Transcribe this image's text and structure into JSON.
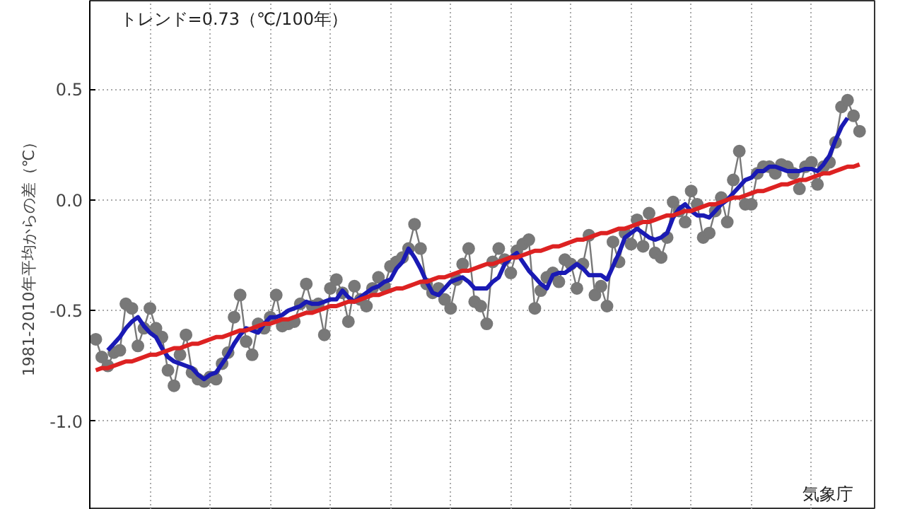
{
  "chart_data": {
    "type": "line",
    "ylabel": "1981-2010年平均からの差（℃）",
    "annotations": [
      "トレンド=0.73（℃/100年）",
      "気象庁"
    ],
    "categories": [
      null,
      null,
      null,
      null,
      null,
      null,
      null,
      null,
      null,
      null,
      null,
      null,
      null,
      null,
      null,
      null,
      null,
      null,
      null,
      null,
      null,
      null,
      null,
      null,
      null,
      null,
      null,
      null,
      null,
      null,
      null,
      null,
      null,
      null,
      null,
      null,
      null,
      null,
      null,
      null,
      null,
      null,
      null,
      null,
      null,
      null,
      null,
      null,
      null,
      null,
      null,
      null,
      null,
      null,
      null,
      null,
      null,
      null,
      null,
      null,
      null,
      null,
      null,
      null,
      null,
      null,
      null,
      null,
      null,
      null,
      null,
      null,
      null,
      null,
      null,
      null,
      null,
      null,
      null,
      null,
      null,
      null,
      null,
      null,
      null,
      null,
      null,
      null,
      null,
      null,
      null,
      null,
      null,
      null,
      null,
      null,
      null,
      null,
      null,
      null,
      null,
      null,
      null,
      null,
      null,
      null,
      null,
      null,
      null,
      null,
      null,
      null,
      null,
      null,
      null,
      null,
      null,
      null,
      null,
      null,
      null,
      null,
      null,
      null,
      null,
      null,
      null,
      null
    ],
    "ylim": [
      -1.4,
      0.9
    ],
    "yticks": [
      {
        "value": -1.0,
        "label": "-1.0"
      },
      {
        "value": -0.5,
        "label": "-0.5"
      },
      {
        "value": 0.0,
        "label": "0.0"
      },
      {
        "value": 0.5,
        "label": "0.5"
      }
    ],
    "grid": true,
    "series": [
      {
        "color": "#787878",
        "marker": "circle",
        "values": [
          -0.63,
          -0.71,
          -0.75,
          -0.69,
          -0.68,
          -0.47,
          -0.49,
          -0.66,
          -0.58,
          -0.49,
          -0.58,
          -0.62,
          -0.77,
          -0.84,
          -0.7,
          -0.61,
          -0.78,
          -0.81,
          -0.82,
          -0.8,
          -0.81,
          -0.74,
          -0.69,
          -0.53,
          -0.43,
          -0.64,
          -0.7,
          -0.56,
          -0.58,
          -0.53,
          -0.43,
          -0.57,
          -0.56,
          -0.55,
          -0.47,
          -0.38,
          -0.48,
          -0.47,
          -0.61,
          -0.4,
          -0.36,
          -0.42,
          -0.55,
          -0.39,
          -0.45,
          -0.48,
          -0.4,
          -0.35,
          -0.39,
          -0.3,
          -0.28,
          -0.26,
          -0.22,
          -0.11,
          -0.22,
          -0.38,
          -0.42,
          -0.4,
          -0.45,
          -0.49,
          -0.36,
          -0.29,
          -0.22,
          -0.46,
          -0.48,
          -0.56,
          -0.28,
          -0.22,
          -0.27,
          -0.33,
          -0.23,
          -0.2,
          -0.18,
          -0.49,
          -0.41,
          -0.35,
          -0.33,
          -0.37,
          -0.27,
          -0.29,
          -0.4,
          -0.29,
          -0.16,
          -0.43,
          -0.39,
          -0.48,
          -0.19,
          -0.28,
          -0.15,
          -0.2,
          -0.09,
          -0.21,
          -0.06,
          -0.24,
          -0.26,
          -0.17,
          -0.01,
          -0.05,
          -0.1,
          0.04,
          -0.02,
          -0.17,
          -0.15,
          -0.05,
          0.01,
          -0.1,
          0.09,
          0.22,
          -0.02,
          -0.02,
          0.12,
          0.15,
          0.15,
          0.12,
          0.16,
          0.15,
          0.12,
          0.05,
          0.15,
          0.17,
          0.07,
          0.15,
          0.17,
          0.26,
          0.42,
          0.45,
          0.38,
          0.31
        ]
      },
      {
        "color": "#1a1ab4",
        "marker": "none",
        "values": [
          null,
          null,
          -0.68,
          -0.65,
          -0.62,
          -0.58,
          -0.55,
          -0.53,
          -0.57,
          -0.6,
          -0.62,
          -0.67,
          -0.71,
          -0.73,
          -0.74,
          -0.75,
          -0.76,
          -0.79,
          -0.81,
          -0.79,
          -0.78,
          -0.74,
          -0.7,
          -0.65,
          -0.61,
          -0.58,
          -0.59,
          -0.6,
          -0.56,
          -0.53,
          -0.53,
          -0.52,
          -0.5,
          -0.49,
          -0.48,
          -0.46,
          -0.47,
          -0.47,
          -0.46,
          -0.45,
          -0.45,
          -0.41,
          -0.44,
          -0.46,
          -0.44,
          -0.42,
          -0.4,
          -0.39,
          -0.37,
          -0.36,
          -0.31,
          -0.28,
          -0.22,
          -0.26,
          -0.31,
          -0.37,
          -0.42,
          -0.43,
          -0.4,
          -0.37,
          -0.36,
          -0.35,
          -0.37,
          -0.4,
          -0.4,
          -0.4,
          -0.37,
          -0.35,
          -0.29,
          -0.26,
          -0.24,
          -0.28,
          -0.32,
          -0.35,
          -0.38,
          -0.4,
          -0.34,
          -0.33,
          -0.33,
          -0.31,
          -0.29,
          -0.31,
          -0.34,
          -0.34,
          -0.34,
          -0.36,
          -0.3,
          -0.24,
          -0.17,
          -0.15,
          -0.13,
          -0.15,
          -0.17,
          -0.18,
          -0.17,
          -0.15,
          -0.08,
          -0.04,
          -0.02,
          -0.05,
          -0.07,
          -0.07,
          -0.08,
          -0.05,
          -0.02,
          0.0,
          0.03,
          0.06,
          0.09,
          0.1,
          0.13,
          0.13,
          0.15,
          0.15,
          0.14,
          0.13,
          0.13,
          0.13,
          0.14,
          0.14,
          0.13,
          0.16,
          0.2,
          0.27,
          0.33,
          0.37,
          null,
          null
        ]
      },
      {
        "color": "#dd2222",
        "marker": "none",
        "values": [
          -0.77,
          -0.76,
          -0.76,
          -0.75,
          -0.74,
          -0.73,
          -0.73,
          -0.72,
          -0.71,
          -0.7,
          -0.7,
          -0.69,
          -0.68,
          -0.67,
          -0.67,
          -0.66,
          -0.65,
          -0.65,
          -0.64,
          -0.63,
          -0.62,
          -0.62,
          -0.61,
          -0.6,
          -0.59,
          -0.59,
          -0.58,
          -0.57,
          -0.56,
          -0.56,
          -0.55,
          -0.54,
          -0.54,
          -0.53,
          -0.52,
          -0.51,
          -0.51,
          -0.5,
          -0.49,
          -0.48,
          -0.48,
          -0.47,
          -0.46,
          -0.46,
          -0.45,
          -0.44,
          -0.43,
          -0.43,
          -0.42,
          -0.41,
          -0.4,
          -0.4,
          -0.39,
          -0.38,
          -0.37,
          -0.37,
          -0.36,
          -0.35,
          -0.35,
          -0.34,
          -0.33,
          -0.32,
          -0.32,
          -0.31,
          -0.3,
          -0.29,
          -0.29,
          -0.28,
          -0.27,
          -0.26,
          -0.26,
          -0.25,
          -0.24,
          -0.23,
          -0.23,
          -0.22,
          -0.21,
          -0.21,
          -0.2,
          -0.19,
          -0.18,
          -0.18,
          -0.17,
          -0.16,
          -0.15,
          -0.15,
          -0.14,
          -0.13,
          -0.13,
          -0.12,
          -0.11,
          -0.1,
          -0.1,
          -0.09,
          -0.08,
          -0.07,
          -0.07,
          -0.06,
          -0.05,
          -0.05,
          -0.04,
          -0.03,
          -0.02,
          -0.02,
          -0.01,
          0.0,
          0.01,
          0.01,
          0.02,
          0.03,
          0.04,
          0.04,
          0.05,
          0.06,
          0.07,
          0.07,
          0.08,
          0.09,
          0.09,
          0.1,
          0.11,
          0.12,
          0.12,
          0.13,
          0.14,
          0.15,
          0.15,
          0.16
        ]
      }
    ]
  }
}
